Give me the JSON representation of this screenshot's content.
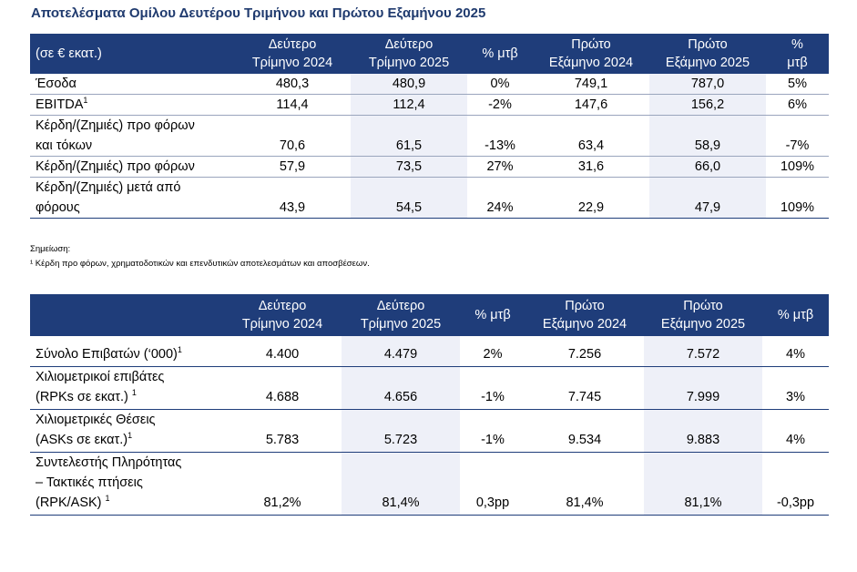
{
  "title": "Αποτελέσματα Ομίλου Δευτέρου Τριμήνου και Πρώτου Εξαμήνου 2025",
  "financial": {
    "header": {
      "label": "(σε € εκατ.)",
      "c1": [
        "Δεύτερο",
        "Τρίμηνο 2024"
      ],
      "c2": [
        "Δεύτερο",
        "Τρίμηνο 2025"
      ],
      "c3": [
        "% μτβ"
      ],
      "c4": [
        "Πρώτο",
        "Εξάμηνο 2024"
      ],
      "c5": [
        "Πρώτο",
        "Εξάμηνο 2025"
      ],
      "c6": [
        "%",
        "μτβ"
      ]
    },
    "rows": [
      {
        "label": [
          "Έσοδα"
        ],
        "sup": "",
        "values": [
          "480,3",
          "480,9",
          "0%",
          "749,1",
          "787,0",
          "5%"
        ]
      },
      {
        "label": [
          "EBITDA"
        ],
        "sup": "1",
        "values": [
          "114,4",
          "112,4",
          "-2%",
          "147,6",
          "156,2",
          "6%"
        ]
      },
      {
        "label": [
          "Κέρδη/(Ζημιές) προ φόρων",
          "και τόκων"
        ],
        "sup": "",
        "values": [
          "70,6",
          "61,5",
          "-13%",
          "63,4",
          "58,9",
          "-7%"
        ]
      },
      {
        "label": [
          "Κέρδη/(Ζημιές) προ φόρων"
        ],
        "sup": "",
        "values": [
          "57,9",
          "73,5",
          "27%",
          "31,6",
          "66,0",
          "109%"
        ]
      },
      {
        "label": [
          "Κέρδη/(Ζημιές) μετά από",
          "φόρους"
        ],
        "sup": "",
        "values": [
          "43,9",
          "54,5",
          "24%",
          "22,9",
          "47,9",
          "109%"
        ]
      }
    ]
  },
  "notes": {
    "heading": "Σημείωση:",
    "line1": "¹ Κέρδη προ φόρων, χρηματοδοτικών και επενδυτικών αποτελεσμάτων και αποσβέσεων."
  },
  "traffic": {
    "header": {
      "label": "",
      "c1": [
        "Δεύτερο",
        "Τρίμηνο 2024"
      ],
      "c2": [
        "Δεύτερο",
        "Τρίμηνο 2025"
      ],
      "c3": [
        "% μτβ"
      ],
      "c4": [
        "Πρώτο",
        "Εξάμηνο 2024"
      ],
      "c5": [
        "Πρώτο",
        "Εξάμηνο 2025"
      ],
      "c6": [
        "% μτβ"
      ]
    },
    "rows": [
      {
        "label": [
          "Σύνολο Επιβατών (‘000)"
        ],
        "sup": "1",
        "values": [
          "4.400",
          "4.479",
          "2%",
          "7.256",
          "7.572",
          "4%"
        ]
      },
      {
        "label": [
          "Χιλιομετρικοί επιβάτες",
          "(RPKs σε εκατ.)"
        ],
        "sup": "1",
        "values": [
          "4.688",
          "4.656",
          "-1%",
          "7.745",
          "7.999",
          "3%"
        ]
      },
      {
        "label": [
          "Χιλιομετρικές Θέσεις",
          "(ASKs σε εκατ.)"
        ],
        "sup": "1",
        "values": [
          "5.783",
          "5.723",
          "-1%",
          "9.534",
          "9.883",
          "4%"
        ]
      },
      {
        "label": [
          "Συντελεστής Πληρότητας",
          "– Τακτικές πτήσεις",
          "(RPK/ASK)"
        ],
        "sup": "1",
        "values": [
          "81,2%",
          "81,4%",
          "0,3pp",
          "81,4%",
          "81,1%",
          "-0,3pp"
        ]
      }
    ]
  }
}
